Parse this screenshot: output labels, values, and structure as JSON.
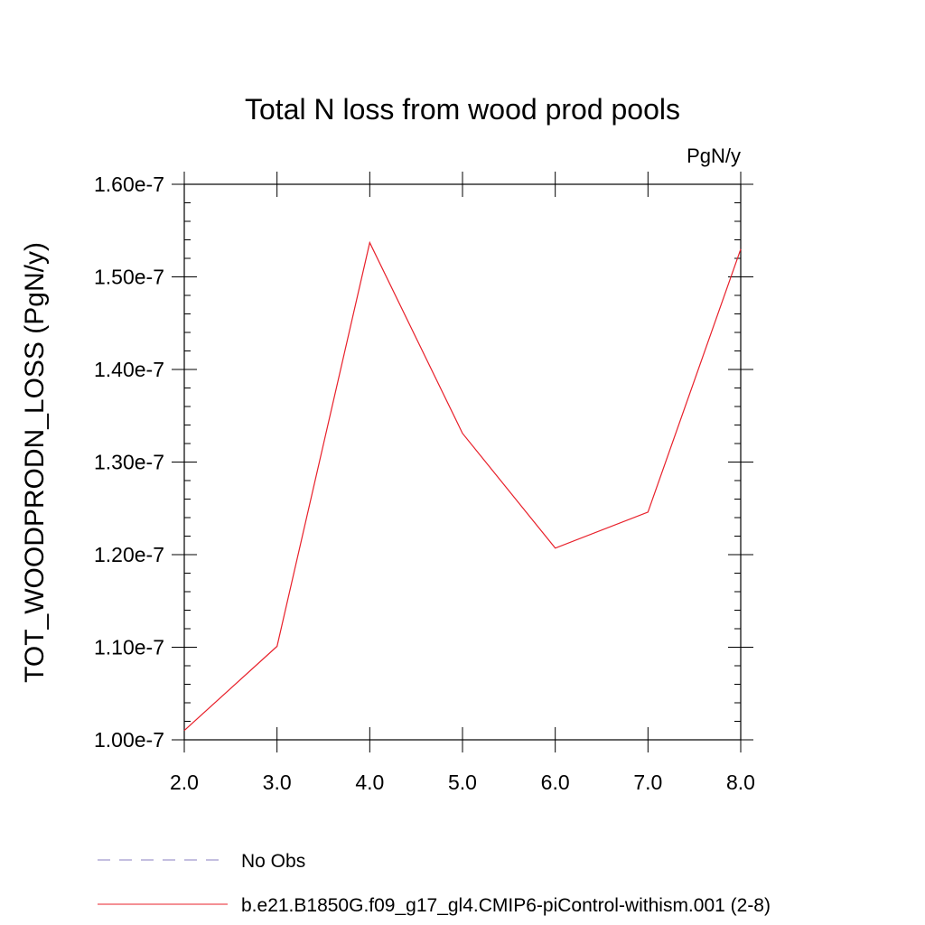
{
  "chart_data": {
    "type": "line",
    "title": "Total N loss from wood prod pools",
    "units_label": "PgN/y",
    "ylabel": "TOT_WOODPRODN_LOSS  (PgN/y)",
    "xlabel": "",
    "xlim": [
      2.0,
      8.0
    ],
    "ylim": [
      1e-07,
      1.6e-07
    ],
    "x_ticks": [
      {
        "value": 2.0,
        "label": "2.0"
      },
      {
        "value": 3.0,
        "label": "3.0"
      },
      {
        "value": 4.0,
        "label": "4.0"
      },
      {
        "value": 5.0,
        "label": "5.0"
      },
      {
        "value": 6.0,
        "label": "6.0"
      },
      {
        "value": 7.0,
        "label": "7.0"
      },
      {
        "value": 8.0,
        "label": "8.0"
      }
    ],
    "y_ticks": [
      {
        "value": 1e-07,
        "label": "1.00e-7"
      },
      {
        "value": 1.1e-07,
        "label": "1.10e-7"
      },
      {
        "value": 1.2e-07,
        "label": "1.20e-7"
      },
      {
        "value": 1.3e-07,
        "label": "1.30e-7"
      },
      {
        "value": 1.4e-07,
        "label": "1.40e-7"
      },
      {
        "value": 1.5e-07,
        "label": "1.50e-7"
      },
      {
        "value": 1.6e-07,
        "label": "1.60e-7"
      }
    ],
    "grid": false,
    "legend_position": "bottom",
    "series": [
      {
        "name": "No Obs",
        "color": "#8a7fc2",
        "dash": "dashed",
        "x": [],
        "y": []
      },
      {
        "name": "b.e21.B1850G.f09_g17_gl4.CMIP6-piControl-withism.001 (2-8)",
        "color": "#e8202a",
        "dash": "solid",
        "x": [
          2.0,
          3.0,
          4.0,
          5.0,
          6.0,
          7.0,
          8.0
        ],
        "y": [
          1.01e-07,
          1.101e-07,
          1.537e-07,
          1.331e-07,
          1.207e-07,
          1.246e-07,
          1.53e-07
        ]
      }
    ]
  }
}
